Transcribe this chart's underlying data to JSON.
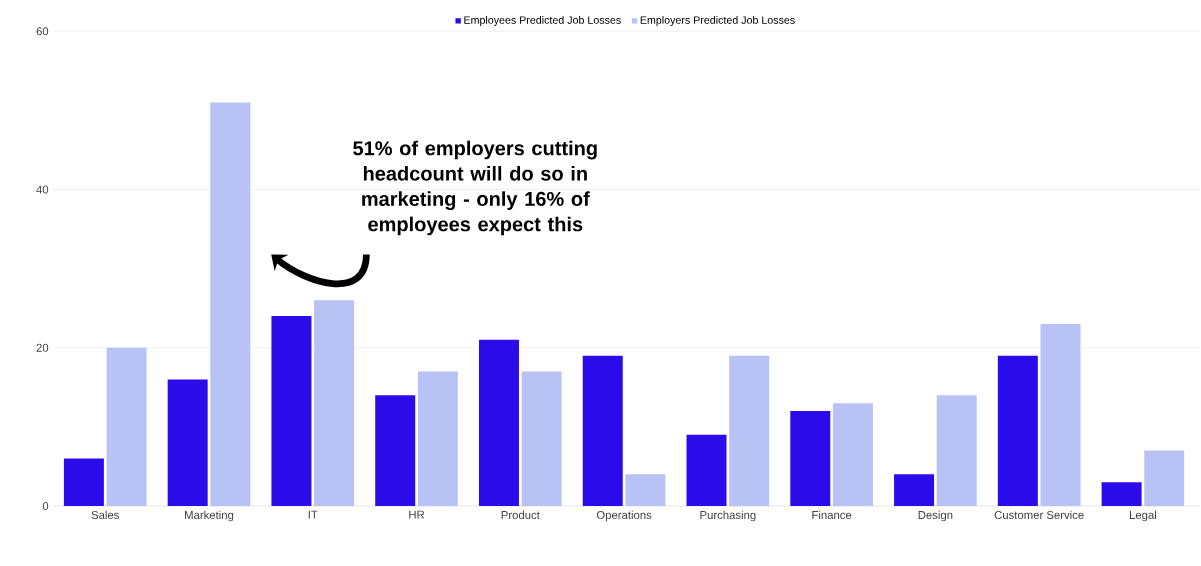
{
  "chart_data": {
    "type": "bar",
    "categories": [
      "Sales",
      "Marketing",
      "IT",
      "HR",
      "Product",
      "Operations",
      "Purchasing",
      "Finance",
      "Design",
      "Customer Service",
      "Legal"
    ],
    "series": [
      {
        "name": "Employees Predicted Job Losses",
        "color": "#2b0bea",
        "values": [
          6,
          16,
          24,
          14,
          21,
          19,
          9,
          12,
          4,
          19,
          3
        ]
      },
      {
        "name": "Employers Predicted Job Losses",
        "color": "#b8c2f5",
        "values": [
          20,
          51,
          26,
          17,
          17,
          4,
          19,
          13,
          14,
          23,
          7
        ]
      }
    ],
    "ylim": [
      0,
      60
    ],
    "yticks": [
      0,
      20,
      40,
      60
    ],
    "grid": "y",
    "legend": "top",
    "annotations": [
      "51% of employers cutting headcount will do so in marketing - only 16% of employees expect this"
    ]
  }
}
